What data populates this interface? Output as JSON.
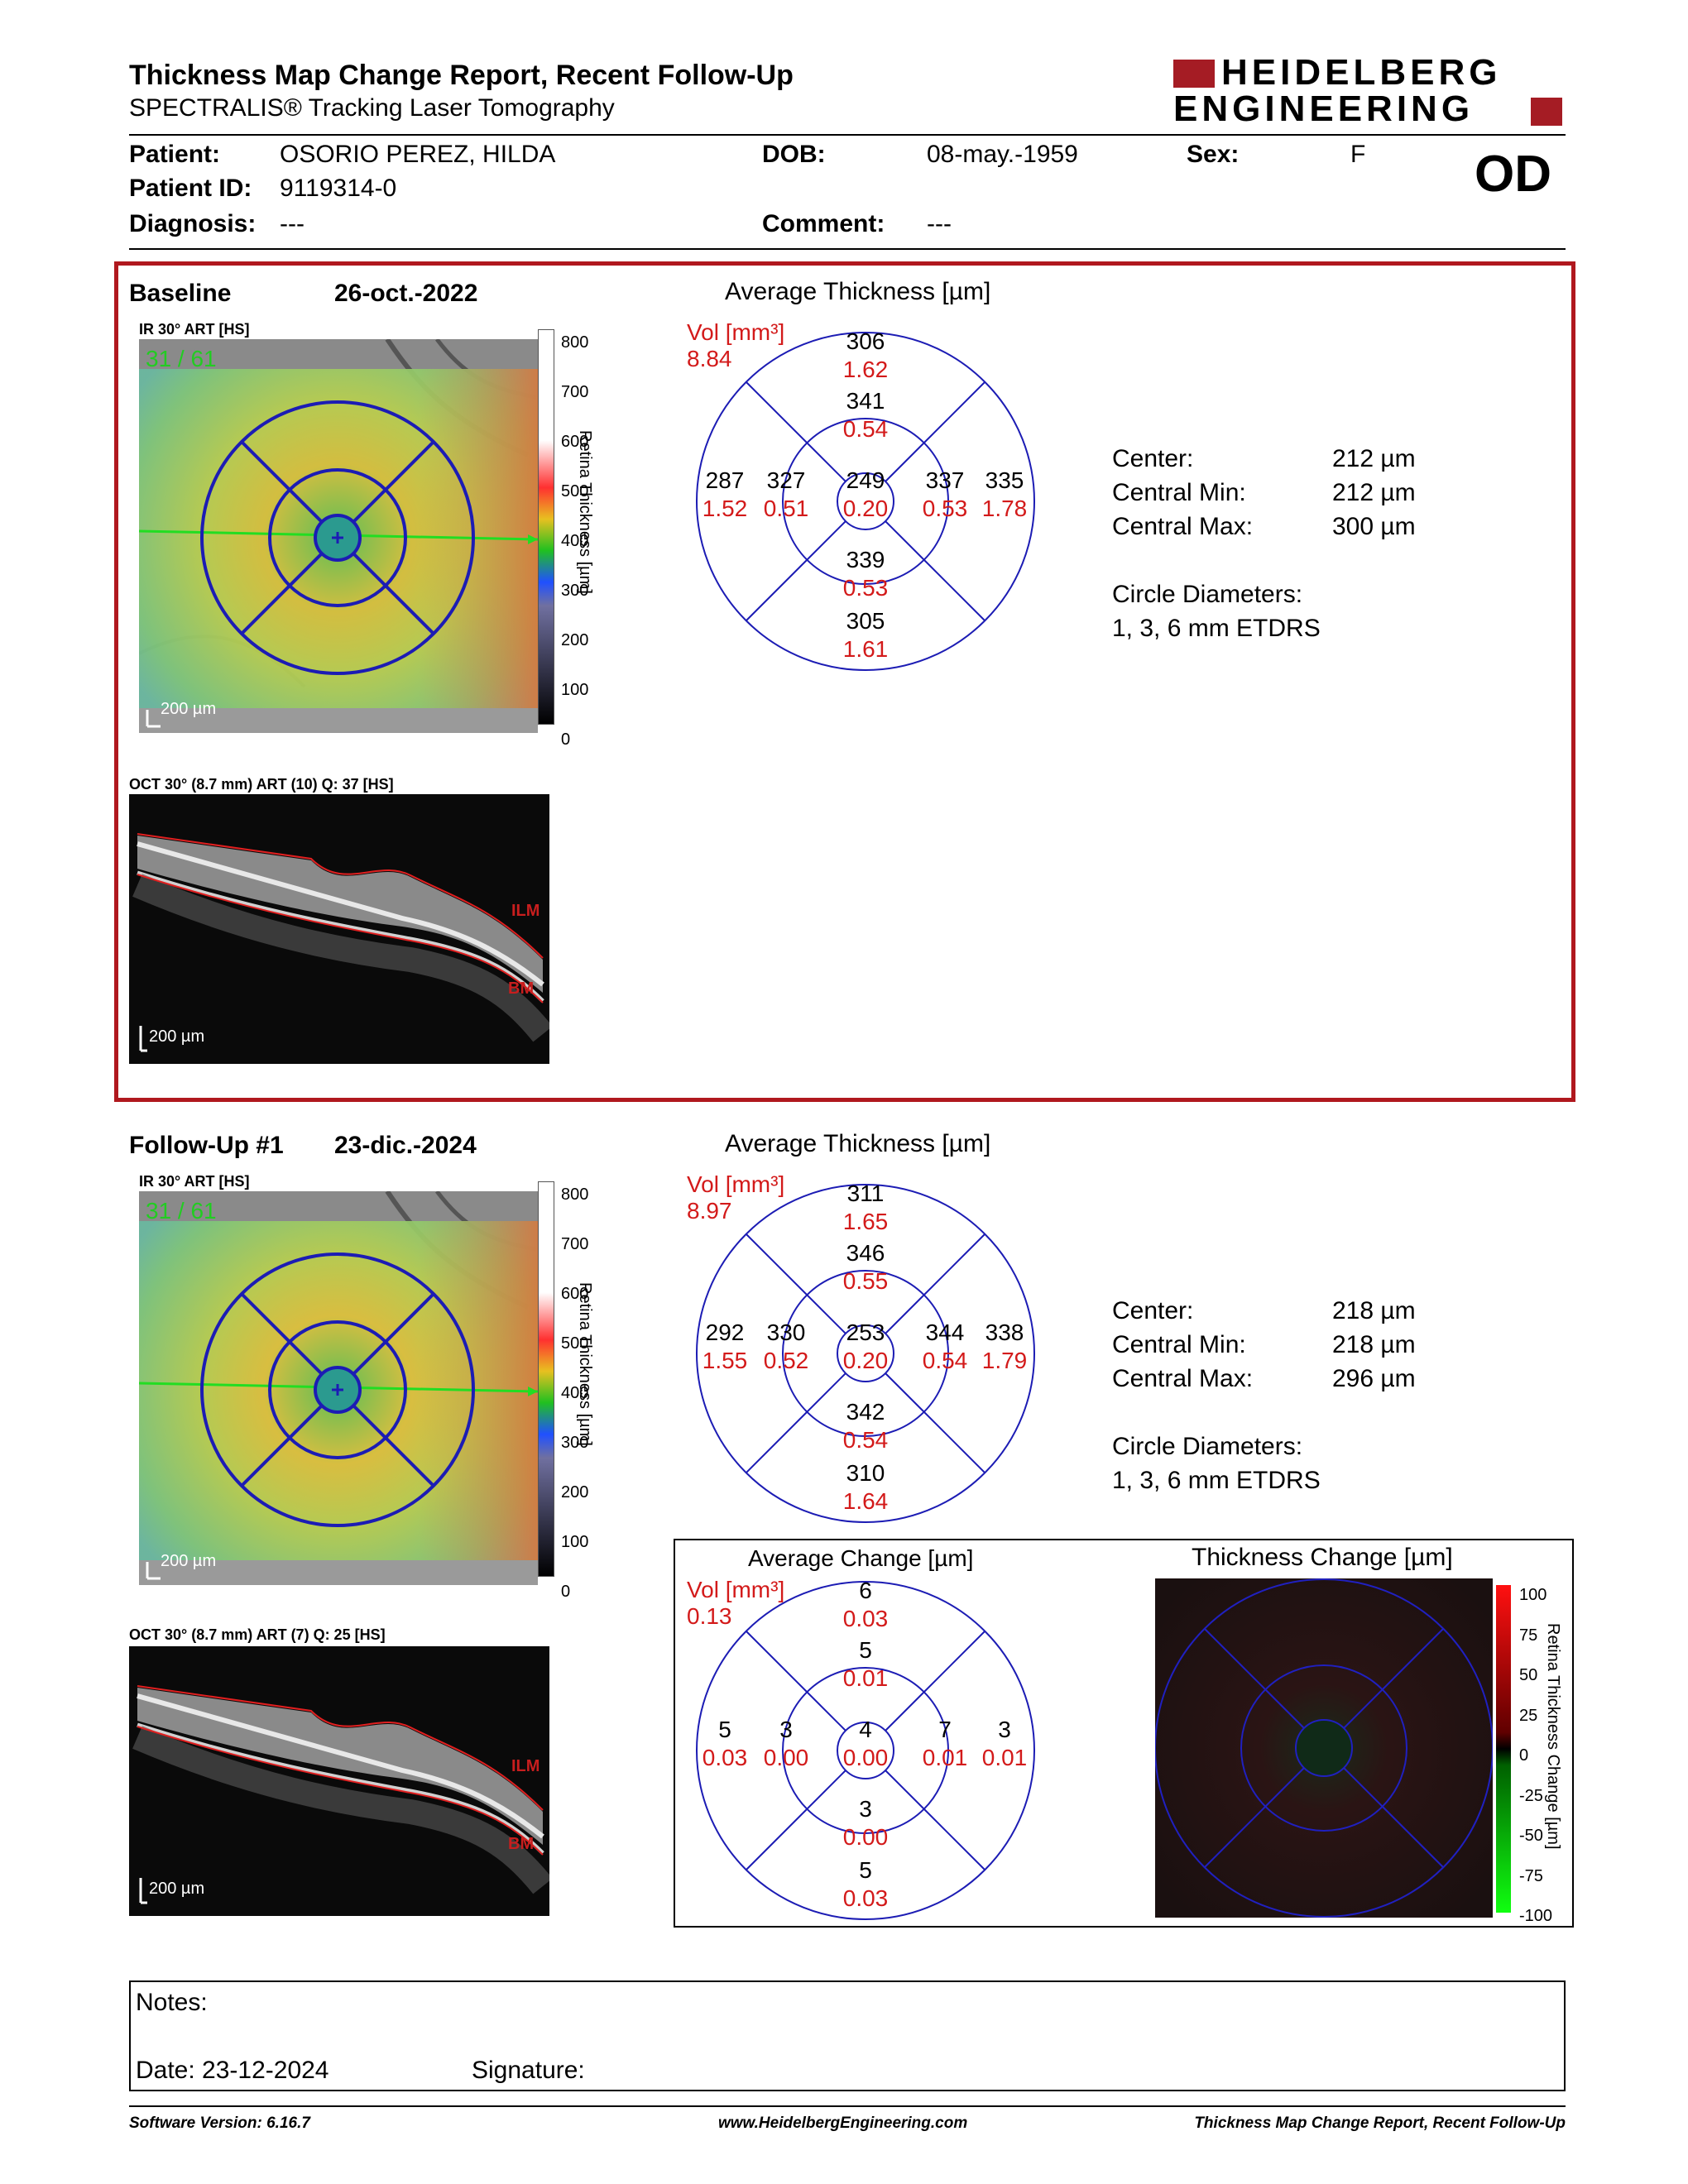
{
  "header": {
    "title": "Thickness Map Change Report, Recent Follow-Up",
    "subtitle": "SPECTRALIS® Tracking Laser Tomography",
    "logo_line1": "HEIDELBERG",
    "logo_line2": "ENGINEERING"
  },
  "patient": {
    "name_label": "Patient:",
    "name": "OSORIO PEREZ, HILDA",
    "id_label": "Patient ID:",
    "id": "9119314-0",
    "diagnosis_label": "Diagnosis:",
    "diagnosis": "---",
    "dob_label": "DOB:",
    "dob": "08-may.-1959",
    "comment_label": "Comment:",
    "comment": "---",
    "sex_label": "Sex:",
    "sex": "F",
    "eye": "OD"
  },
  "baseline": {
    "label": "Baseline",
    "date": "26-oct.-2022",
    "ir_label": "IR 30° ART [HS]",
    "ir_counter": "31 / 61",
    "ir_scale": "200 µm",
    "oct_label": "OCT 30° (8.7 mm) ART (10) Q: 37 [HS]",
    "oct_scale": "200 µm",
    "ilm": "ILM",
    "bm": "BM",
    "avg_title": "Average Thickness [µm]",
    "vol_label": "Vol [mm³]",
    "vol_total": "8.84",
    "grid": {
      "outer_sup": [
        "306",
        "1.62"
      ],
      "inner_sup": [
        "341",
        "0.54"
      ],
      "outer_temp": [
        "287",
        "1.52"
      ],
      "inner_temp": [
        "327",
        "0.51"
      ],
      "center": [
        "249",
        "0.20"
      ],
      "inner_nas": [
        "337",
        "0.53"
      ],
      "outer_nas": [
        "335",
        "1.78"
      ],
      "inner_inf": [
        "339",
        "0.53"
      ],
      "outer_inf": [
        "305",
        "1.61"
      ]
    },
    "stats": {
      "center_label": "Center:",
      "center": "212 µm",
      "min_label": "Central Min:",
      "min": "212 µm",
      "max_label": "Central Max:",
      "max": "300 µm",
      "diam_label": "Circle Diameters:",
      "diam": "1, 3, 6 mm ETDRS"
    }
  },
  "followup": {
    "label": "Follow-Up #1",
    "date": "23-dic.-2024",
    "ir_label": "IR 30° ART [HS]",
    "ir_counter": "31 / 61",
    "ir_scale": "200 µm",
    "oct_label": "OCT 30° (8.7 mm) ART (7) Q: 25 [HS]",
    "oct_scale": "200 µm",
    "ilm": "ILM",
    "bm": "BM",
    "avg_title": "Average Thickness [µm]",
    "vol_label": "Vol [mm³]",
    "vol_total": "8.97",
    "grid": {
      "outer_sup": [
        "311",
        "1.65"
      ],
      "inner_sup": [
        "346",
        "0.55"
      ],
      "outer_temp": [
        "292",
        "1.55"
      ],
      "inner_temp": [
        "330",
        "0.52"
      ],
      "center": [
        "253",
        "0.20"
      ],
      "inner_nas": [
        "344",
        "0.54"
      ],
      "outer_nas": [
        "338",
        "1.79"
      ],
      "inner_inf": [
        "342",
        "0.54"
      ],
      "outer_inf": [
        "310",
        "1.64"
      ]
    },
    "stats": {
      "center_label": "Center:",
      "center": "218 µm",
      "min_label": "Central Min:",
      "min": "218 µm",
      "max_label": "Central Max:",
      "max": "296 µm",
      "diam_label": "Circle Diameters:",
      "diam": "1, 3, 6 mm ETDRS"
    }
  },
  "change": {
    "avg_title": "Average Change [µm]",
    "vol_label": "Vol [mm³]",
    "vol_total": "0.13",
    "grid": {
      "outer_sup": [
        "6",
        "0.03"
      ],
      "inner_sup": [
        "5",
        "0.01"
      ],
      "outer_temp": [
        "5",
        "0.03"
      ],
      "inner_temp": [
        "3",
        "0.00"
      ],
      "center": [
        "4",
        "0.00"
      ],
      "inner_nas": [
        "7",
        "0.01"
      ],
      "outer_nas": [
        "3",
        "0.01"
      ],
      "inner_inf": [
        "3",
        "0.00"
      ],
      "outer_inf": [
        "5",
        "0.03"
      ]
    },
    "map_title": "Thickness Change [µm]",
    "scale_title": "Retina Thickness Change [µm]",
    "scale_ticks": [
      "100",
      "75",
      "50",
      "25",
      "0",
      "-25",
      "-50",
      "-75",
      "-100"
    ]
  },
  "thickness_scale": {
    "title": "Retina Thickness [µm]",
    "ticks": [
      "800",
      "700",
      "600",
      "500",
      "400",
      "300",
      "200",
      "100",
      "0"
    ]
  },
  "notes": {
    "label": "Notes:",
    "date_label": "Date: 23-12-2024",
    "signature_label": "Signature:"
  },
  "footer": {
    "version": "Software Version: 6.16.7",
    "url": "www.HeidelbergEngineering.com",
    "report": "Thickness Map Change Report, Recent Follow-Up"
  }
}
